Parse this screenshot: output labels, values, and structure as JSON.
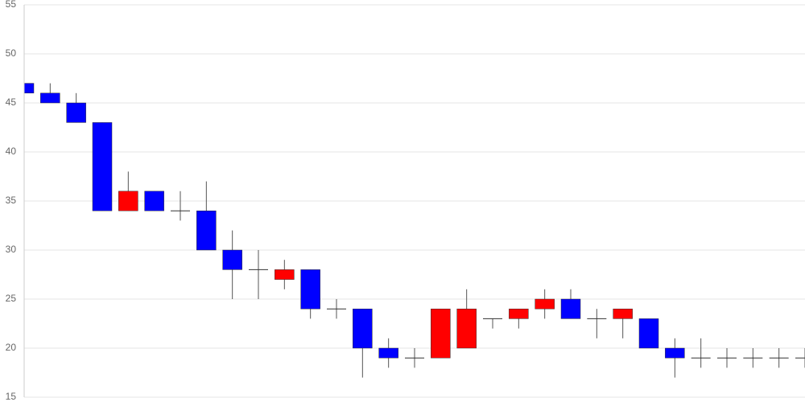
{
  "chart_data": {
    "type": "candlestick",
    "categories": [
      null,
      null,
      null,
      null,
      null,
      null,
      null,
      null,
      null,
      null,
      null,
      null,
      null,
      null,
      null,
      null,
      null,
      null,
      null,
      null,
      null,
      null,
      null,
      null,
      null,
      null,
      null,
      null,
      null,
      null,
      null
    ],
    "open": [
      47,
      46,
      45,
      43,
      34,
      36,
      34,
      34,
      30,
      28,
      27,
      28,
      24,
      24,
      20,
      19,
      19,
      20,
      23,
      23,
      24,
      25,
      23,
      23,
      23,
      20,
      19,
      19,
      19,
      19,
      19
    ],
    "high": [
      49,
      47,
      46,
      43,
      38,
      36,
      36,
      37,
      32,
      30,
      29,
      28,
      25,
      24,
      21,
      20,
      24,
      26,
      23,
      24,
      26,
      26,
      24,
      24,
      23,
      21,
      21,
      20,
      20,
      20,
      20
    ],
    "low": [
      46,
      45,
      43,
      34,
      34,
      34,
      33,
      30,
      25,
      25,
      26,
      23,
      23,
      17,
      18,
      18,
      19,
      20,
      22,
      22,
      23,
      23,
      21,
      21,
      20,
      17,
      18,
      18,
      18,
      18,
      18
    ],
    "close": [
      46,
      45,
      43,
      34,
      36,
      34,
      34,
      30,
      28,
      28,
      28,
      24,
      24,
      20,
      19,
      19,
      24,
      24,
      23,
      24,
      25,
      23,
      23,
      24,
      20,
      19,
      19,
      19,
      19,
      19,
      19
    ],
    "up_color": "#ff0000",
    "down_color": "#0000ff",
    "ylim": [
      15,
      55
    ],
    "yticks": [
      15,
      20,
      25,
      30,
      35,
      40,
      45,
      50,
      55
    ],
    "grid": true
  }
}
